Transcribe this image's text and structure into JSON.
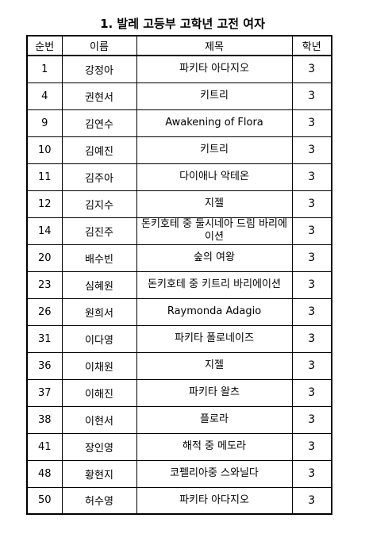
{
  "title": "1. 발레 고등부 고학년 고전 여자",
  "columns": [
    "순번",
    "이름",
    "제목",
    "학년"
  ],
  "rows": [
    {
      "no": "1",
      "name": "강정아",
      "work": "파키타 아다지오",
      "grade": "3"
    },
    {
      "no": "4",
      "name": "권현서",
      "work": "키트리",
      "grade": "3"
    },
    {
      "no": "9",
      "name": "김연수",
      "work": "Awakening of Flora",
      "grade": "3"
    },
    {
      "no": "10",
      "name": "김예진",
      "work": "키트리",
      "grade": "3"
    },
    {
      "no": "11",
      "name": "김주아",
      "work": "다이애나 악테온",
      "grade": "3"
    },
    {
      "no": "12",
      "name": "김지수",
      "work": "지젤",
      "grade": "3"
    },
    {
      "no": "14",
      "name": "김진주",
      "work": "돈키호테 중 둘시네아 드림 바리에이션",
      "grade": "3"
    },
    {
      "no": "20",
      "name": "배수빈",
      "work": "숲의 여왕",
      "grade": "3"
    },
    {
      "no": "23",
      "name": "심혜원",
      "work": "돈키호테 중 키트리 바리에이션",
      "grade": "3"
    },
    {
      "no": "26",
      "name": "원희서",
      "work": "Raymonda Adagio",
      "grade": "3"
    },
    {
      "no": "31",
      "name": "이다영",
      "work": "파키타 폴로네이즈",
      "grade": "3"
    },
    {
      "no": "36",
      "name": "이채원",
      "work": "지젤",
      "grade": "3"
    },
    {
      "no": "37",
      "name": "이해진",
      "work": "파키타 왈츠",
      "grade": "3"
    },
    {
      "no": "38",
      "name": "이현서",
      "work": "플로라",
      "grade": "3"
    },
    {
      "no": "41",
      "name": "장인영",
      "work": "해적 중 메도라",
      "grade": "3"
    },
    {
      "no": "48",
      "name": "황현지",
      "work": "코펠리아중 스와닐다",
      "grade": "3"
    },
    {
      "no": "50",
      "name": "허수영",
      "work": "파키타 아다지오",
      "grade": "3"
    }
  ]
}
